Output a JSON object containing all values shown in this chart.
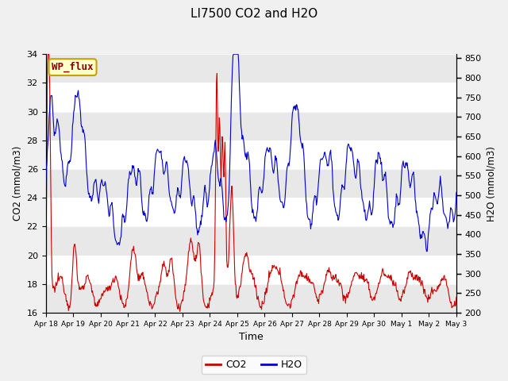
{
  "title": "LI7500 CO2 and H2O",
  "xlabel": "Time",
  "ylabel_left": "CO2 (mmol/m3)",
  "ylabel_right": "H2O (mmol/m3)",
  "ylim_left": [
    16,
    34
  ],
  "ylim_right": [
    200,
    860
  ],
  "yticks_left": [
    16,
    18,
    20,
    22,
    24,
    26,
    28,
    30,
    32,
    34
  ],
  "yticks_right": [
    200,
    250,
    300,
    350,
    400,
    450,
    500,
    550,
    600,
    650,
    700,
    750,
    800,
    850
  ],
  "xtick_labels": [
    "Apr 18",
    "Apr 19",
    "Apr 20",
    "Apr 21",
    "Apr 22",
    "Apr 23",
    "Apr 24",
    "Apr 25",
    "Apr 26",
    "Apr 27",
    "Apr 28",
    "Apr 29",
    "Apr 30",
    "May 1",
    "May 2",
    "May 3"
  ],
  "bg_color": "#f0f0f0",
  "plot_bg_color": "#ffffff",
  "co2_color": "#cc0000",
  "h2o_color": "#0000cc",
  "wp_flux_text_color": "#8b0000",
  "wp_flux_bg": "#ffffcc",
  "wp_flux_edge": "#c8a000",
  "band_even_color": "#e8e8e8",
  "band_odd_color": "#ffffff"
}
